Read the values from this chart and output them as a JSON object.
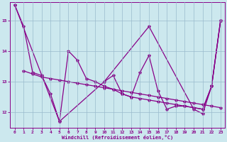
{
  "xlabel": "Windchill (Refroidissement éolien,°C)",
  "bg_color": "#cce8ee",
  "line_color": "#880088",
  "grid_color": "#99bbcc",
  "ylim": [
    11.5,
    15.6
  ],
  "xlim": [
    -0.5,
    23.5
  ],
  "yticks": [
    12,
    13,
    14,
    15
  ],
  "xticks": [
    0,
    1,
    2,
    3,
    4,
    5,
    6,
    7,
    8,
    9,
    10,
    11,
    12,
    13,
    14,
    15,
    16,
    17,
    18,
    19,
    20,
    21,
    22,
    23
  ],
  "line1_x": [
    0,
    1,
    2,
    3,
    4,
    5,
    6,
    7,
    8,
    9,
    10,
    11,
    12,
    13,
    14,
    15,
    16,
    17,
    18,
    19,
    20,
    21,
    22,
    23
  ],
  "line1_y": [
    15.5,
    14.8,
    13.3,
    13.2,
    12.6,
    11.7,
    14.0,
    13.7,
    13.1,
    13.0,
    12.85,
    12.75,
    12.6,
    12.5,
    12.45,
    12.4,
    12.35,
    12.3,
    12.25,
    12.2,
    12.15,
    12.1,
    12.85,
    15.0
  ],
  "line2_x": [
    1,
    2,
    3,
    4,
    5,
    6,
    7,
    8,
    9,
    10,
    11,
    12,
    13,
    14,
    15,
    16,
    17,
    18,
    19,
    20,
    21,
    22,
    23
  ],
  "line2_y": [
    13.35,
    13.25,
    13.15,
    13.1,
    13.05,
    13.0,
    12.95,
    12.9,
    12.85,
    12.8,
    12.75,
    12.7,
    12.65,
    12.6,
    12.55,
    12.5,
    12.45,
    12.4,
    12.35,
    12.3,
    12.25,
    12.2,
    12.15
  ],
  "line3_x": [
    0,
    5,
    10,
    15,
    20,
    21,
    22,
    23
  ],
  "line3_y": [
    15.5,
    11.7,
    13.0,
    14.8,
    12.1,
    11.95,
    12.85,
    15.0
  ],
  "line4_x": [
    10,
    11,
    12,
    13,
    14,
    15,
    16,
    17,
    18,
    19,
    20,
    21,
    22,
    23
  ],
  "line4_y": [
    13.0,
    13.2,
    12.6,
    12.5,
    13.3,
    13.85,
    12.7,
    12.1,
    12.2,
    12.2,
    12.15,
    12.1,
    12.85,
    15.0
  ]
}
